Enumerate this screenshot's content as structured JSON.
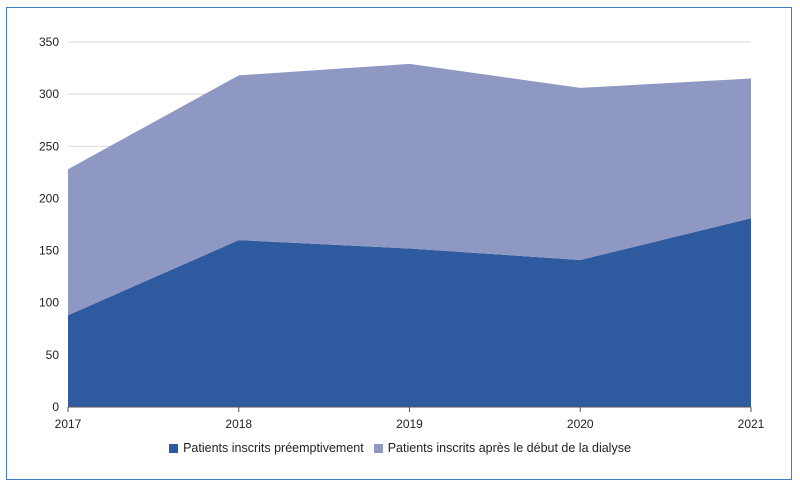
{
  "chart_data": {
    "type": "area",
    "stacked": true,
    "x": [
      "2017",
      "2018",
      "2019",
      "2020",
      "2021"
    ],
    "series": [
      {
        "name": "Patients inscrits préemptivement",
        "values": [
          88,
          160,
          152,
          141,
          181
        ],
        "color": "#2e5b9f"
      },
      {
        "name": "Patients inscrits après le début de la dialyse",
        "values": [
          140,
          158,
          177,
          165,
          134
        ],
        "color": "#8f98c3"
      }
    ],
    "ylim": [
      0,
      350
    ],
    "yticks": [
      "0",
      "50",
      "100",
      "150",
      "200",
      "250",
      "300",
      "350"
    ],
    "grid": true,
    "legend_position": "bottom",
    "title": "",
    "xlabel": "",
    "ylabel": ""
  }
}
